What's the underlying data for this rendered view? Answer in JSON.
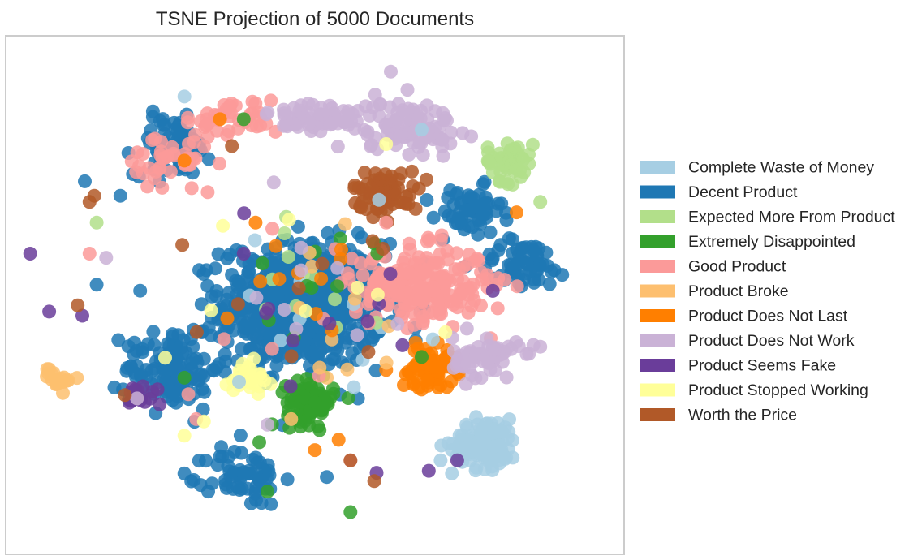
{
  "chart_data": {
    "type": "scatter",
    "title": "TSNE Projection of 5000 Documents",
    "xlabel": "",
    "ylabel": "",
    "axis_ticks": "hidden",
    "grid": false,
    "legend_position": "right",
    "point_count_represented": 5000,
    "series": [
      {
        "name": "Complete Waste of Money",
        "color": "#a6cee3",
        "clusters": [
          {
            "cx": 0.72,
            "cy": -0.72,
            "sx": 0.07,
            "sy": 0.06,
            "n": 110
          }
        ],
        "scatter": [
          [
            -0.55,
            0.96
          ],
          [
            0.27,
            0.46
          ],
          [
            -0.32,
            -0.42
          ],
          [
            0.45,
            0.8
          ],
          [
            0.53,
            -0.8
          ]
        ]
      },
      {
        "name": "Decent Product",
        "color": "#1f78b4",
        "clusters": [
          {
            "cx": -0.05,
            "cy": -0.05,
            "sx": 0.17,
            "sy": 0.15,
            "n": 700
          },
          {
            "cx": -0.6,
            "cy": 0.72,
            "sx": 0.08,
            "sy": 0.07,
            "n": 80
          },
          {
            "cx": 0.65,
            "cy": 0.4,
            "sx": 0.07,
            "sy": 0.06,
            "n": 60
          },
          {
            "cx": -0.6,
            "cy": -0.35,
            "sx": 0.1,
            "sy": 0.1,
            "n": 120
          },
          {
            "cx": -0.3,
            "cy": -0.88,
            "sx": 0.08,
            "sy": 0.07,
            "n": 60
          },
          {
            "cx": 0.88,
            "cy": 0.15,
            "sx": 0.1,
            "sy": 0.06,
            "n": 60
          }
        ],
        "scatter": [
          [
            -0.97,
            0.55
          ],
          [
            -0.92,
            0.05
          ],
          [
            -0.82,
            0.48
          ],
          [
            0.05,
            -0.88
          ],
          [
            -0.45,
            -0.95
          ]
        ]
      },
      {
        "name": "Expected More From Product",
        "color": "#b2df8a",
        "clusters": [
          {
            "cx": 0.82,
            "cy": 0.65,
            "sx": 0.05,
            "sy": 0.05,
            "n": 50
          }
        ],
        "scatter": [
          [
            -0.92,
            0.35
          ],
          [
            0.95,
            0.45
          ]
        ]
      },
      {
        "name": "Extremely Disappointed",
        "color": "#33a02c",
        "clusters": [
          {
            "cx": -0.02,
            "cy": -0.52,
            "sx": 0.05,
            "sy": 0.05,
            "n": 90
          }
        ],
        "scatter": [
          [
            0.25,
            0.25
          ],
          [
            -0.3,
            0.85
          ],
          [
            0.15,
            -1.05
          ],
          [
            -0.55,
            -0.4
          ],
          [
            0.45,
            -0.3
          ],
          [
            -0.2,
            -0.95
          ]
        ]
      },
      {
        "name": "Good Product",
        "color": "#fb9a99",
        "clusters": [
          {
            "cx": 0.45,
            "cy": 0.05,
            "sx": 0.14,
            "sy": 0.09,
            "n": 220
          },
          {
            "cx": -0.6,
            "cy": 0.63,
            "sx": 0.1,
            "sy": 0.08,
            "n": 40
          },
          {
            "cx": -0.35,
            "cy": 0.85,
            "sx": 0.1,
            "sy": 0.05,
            "n": 40
          }
        ],
        "scatter": [
          [
            -0.95,
            0.2
          ],
          [
            -0.5,
            -0.6
          ],
          [
            0.15,
            -0.8
          ],
          [
            0.3,
            0.35
          ]
        ]
      },
      {
        "name": "Product Broke",
        "color": "#fdbf6f",
        "clusters": [
          {
            "cx": -1.08,
            "cy": -0.4,
            "sx": 0.03,
            "sy": 0.03,
            "n": 20
          }
        ],
        "scatter": [
          [
            -0.1,
            -0.6
          ],
          [
            0.05,
            -0.4
          ]
        ]
      },
      {
        "name": "Product Does Not Last",
        "color": "#ff7f00",
        "clusters": [
          {
            "cx": 0.48,
            "cy": -0.35,
            "sx": 0.06,
            "sy": 0.05,
            "n": 70
          }
        ],
        "scatter": [
          [
            -0.4,
            0.85
          ],
          [
            0.85,
            0.4
          ],
          [
            0.1,
            -0.7
          ],
          [
            -0.55,
            0.65
          ],
          [
            -0.25,
            0.35
          ],
          [
            0.0,
            -0.75
          ]
        ]
      },
      {
        "name": "Product Does Not Work",
        "color": "#cab2d6",
        "clusters": [
          {
            "cx": 0.38,
            "cy": 0.82,
            "sx": 0.11,
            "sy": 0.06,
            "n": 100
          },
          {
            "cx": -0.02,
            "cy": 0.85,
            "sx": 0.09,
            "sy": 0.05,
            "n": 60
          },
          {
            "cx": 0.72,
            "cy": -0.3,
            "sx": 0.07,
            "sy": 0.05,
            "n": 60
          }
        ],
        "scatter": [
          [
            0.32,
            1.08
          ],
          [
            -0.88,
            0.18
          ],
          [
            -0.75,
            -0.5
          ],
          [
            0.95,
            -0.25
          ]
        ]
      },
      {
        "name": "Product Seems Fake",
        "color": "#6a3d9a",
        "clusters": [
          {
            "cx": -0.72,
            "cy": -0.48,
            "sx": 0.04,
            "sy": 0.04,
            "n": 15
          }
        ],
        "scatter": [
          [
            -1.2,
            0.2
          ],
          [
            -1.12,
            -0.08
          ],
          [
            -0.98,
            -0.1
          ],
          [
            0.26,
            -0.86
          ],
          [
            0.48,
            -0.85
          ],
          [
            0.6,
            -0.8
          ],
          [
            0.75,
            0.02
          ],
          [
            -0.3,
            0.2
          ]
        ]
      },
      {
        "name": "Product Stopped Working",
        "color": "#ffff99",
        "clusters": [
          {
            "cx": -0.28,
            "cy": -0.4,
            "sx": 0.04,
            "sy": 0.04,
            "n": 25
          }
        ],
        "scatter": [
          [
            0.3,
            0.73
          ],
          [
            -0.05,
            0.1
          ],
          [
            -0.55,
            -0.68
          ],
          [
            0.55,
            -0.18
          ]
        ]
      },
      {
        "name": "Worth the Price",
        "color": "#b15928",
        "clusters": [
          {
            "cx": 0.3,
            "cy": 0.5,
            "sx": 0.07,
            "sy": 0.05,
            "n": 70
          }
        ],
        "scatter": [
          [
            -0.93,
            0.48
          ],
          [
            -0.95,
            0.45
          ],
          [
            -1.0,
            -0.05
          ],
          [
            0.15,
            -0.8
          ],
          [
            -0.35,
            0.72
          ],
          [
            0.25,
            -0.9
          ]
        ]
      }
    ]
  }
}
